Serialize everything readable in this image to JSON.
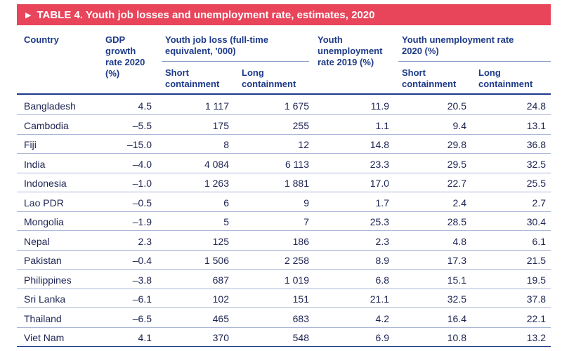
{
  "title": "TABLE 4. Youth job losses and unemployment rate, estimates, 2020",
  "headers": {
    "country": "Country",
    "gdp_l1": "GDP",
    "gdp_l2": "growth",
    "gdp_l3": "rate 2020",
    "gdp_l4": "(%)",
    "jobloss_l1": "Youth job loss (full-time",
    "jobloss_l2": "equivalent, '000)",
    "unemp2019_l1": "Youth",
    "unemp2019_l2": "unemployment",
    "unemp2019_l3": "rate 2019 (%)",
    "unemp2020_l1": "Youth unemployment rate",
    "unemp2020_l2": "2020 (%)",
    "short_l1": "Short",
    "short_l2": "containment",
    "long_l1": "Long",
    "long_l2": "containment",
    "short2_l1": "Short",
    "short2_l2": "containment",
    "long2_l1": "Long",
    "long2_l2": "containment"
  },
  "rows": [
    {
      "country": "Bangladesh",
      "gdp": "4.5",
      "loss_short": "1 117",
      "loss_long": "1 675",
      "u2019": "11.9",
      "u_short": "20.5",
      "u_long": "24.8"
    },
    {
      "country": "Cambodia",
      "gdp": "–5.5",
      "loss_short": "175",
      "loss_long": "255",
      "u2019": "1.1",
      "u_short": "9.4",
      "u_long": "13.1"
    },
    {
      "country": "Fiji",
      "gdp": "–15.0",
      "loss_short": "8",
      "loss_long": "12",
      "u2019": "14.8",
      "u_short": "29.8",
      "u_long": "36.8"
    },
    {
      "country": "India",
      "gdp": "–4.0",
      "loss_short": "4 084",
      "loss_long": "6 113",
      "u2019": "23.3",
      "u_short": "29.5",
      "u_long": "32.5"
    },
    {
      "country": "Indonesia",
      "gdp": "–1.0",
      "loss_short": "1 263",
      "loss_long": "1 881",
      "u2019": "17.0",
      "u_short": "22.7",
      "u_long": "25.5"
    },
    {
      "country": "Lao PDR",
      "gdp": "–0.5",
      "loss_short": "6",
      "loss_long": "9",
      "u2019": "1.7",
      "u_short": "2.4",
      "u_long": "2.7"
    },
    {
      "country": "Mongolia",
      "gdp": "–1.9",
      "loss_short": "5",
      "loss_long": "7",
      "u2019": "25.3",
      "u_short": "28.5",
      "u_long": "30.4"
    },
    {
      "country": "Nepal",
      "gdp": "2.3",
      "loss_short": "125",
      "loss_long": "186",
      "u2019": "2.3",
      "u_short": "4.8",
      "u_long": "6.1"
    },
    {
      "country": "Pakistan",
      "gdp": "–0.4",
      "loss_short": "1 506",
      "loss_long": "2 258",
      "u2019": "8.9",
      "u_short": "17.3",
      "u_long": "21.5"
    },
    {
      "country": "Philippines",
      "gdp": "–3.8",
      "loss_short": "687",
      "loss_long": "1 019",
      "u2019": "6.8",
      "u_short": "15.1",
      "u_long": "19.5"
    },
    {
      "country": "Sri Lanka",
      "gdp": "–6.1",
      "loss_short": "102",
      "loss_long": "151",
      "u2019": "21.1",
      "u_short": "32.5",
      "u_long": "37.8"
    },
    {
      "country": "Thailand",
      "gdp": "–6.5",
      "loss_short": "465",
      "loss_long": "683",
      "u2019": "4.2",
      "u_short": "16.4",
      "u_long": "22.1"
    },
    {
      "country": "Viet Nam",
      "gdp": "4.1",
      "loss_short": "370",
      "loss_long": "548",
      "u2019": "6.9",
      "u_short": "10.8",
      "u_long": "13.2"
    }
  ]
}
